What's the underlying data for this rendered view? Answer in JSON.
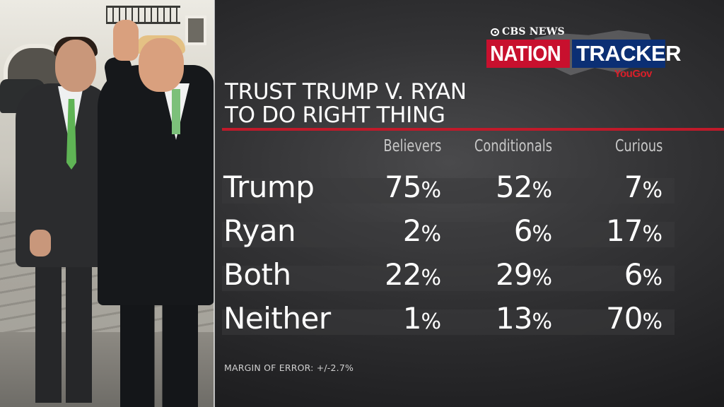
{
  "logo": {
    "network": "CBS NEWS",
    "word1": "NATION",
    "word2": "TRACKER",
    "partner": "YouGov"
  },
  "title_lines": [
    "TRUST TRUMP V. RYAN",
    "TO DO RIGHT THING"
  ],
  "chart_data": {
    "type": "table",
    "title": "TRUST TRUMP V. RYAN TO DO RIGHT THING",
    "columns": [
      "Believers",
      "Conditionals",
      "Curious"
    ],
    "rows": [
      {
        "label": "Trump",
        "values": [
          75,
          52,
          7
        ]
      },
      {
        "label": "Ryan",
        "values": [
          2,
          6,
          17
        ]
      },
      {
        "label": "Both",
        "values": [
          22,
          29,
          6
        ]
      },
      {
        "label": "Neither",
        "values": [
          1,
          13,
          70
        ]
      }
    ],
    "unit": "%"
  },
  "footnote": "MARGIN OF ERROR: +/-2.7%",
  "colors": {
    "accent_red": "#c01a2a",
    "logo_blue": "#0b2f74",
    "logo_red": "#c8102e",
    "text": "#ffffff"
  }
}
